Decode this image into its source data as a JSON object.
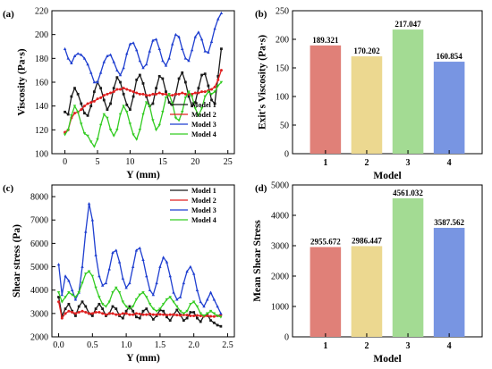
{
  "colors": {
    "model1": "#1a1a1a",
    "model2": "#e02020",
    "model3": "#1f3fd0",
    "model4": "#33cc22",
    "bar1": "#e08078",
    "bar2": "#ecd890",
    "bar3": "#a3db93",
    "bar4": "#7895e2"
  },
  "chart_data": [
    {
      "id": "a",
      "panel_label": "(a)",
      "type": "line",
      "xlabel": "Y (mm)",
      "ylabel": "Viscosity (Pa·s)",
      "xlim": [
        -2,
        26
      ],
      "ylim": [
        100,
        220
      ],
      "xticks": [
        0,
        5,
        10,
        15,
        20,
        25
      ],
      "yticks": [
        100,
        120,
        140,
        160,
        180,
        200,
        220
      ],
      "legend_position": "bottom-right",
      "series": [
        {
          "name": "Model 1",
          "color_key": "model1",
          "marker": "square",
          "x": [
            0,
            0.5,
            1,
            1.5,
            2,
            2.5,
            3,
            3.5,
            4,
            4.5,
            5,
            5.5,
            6,
            6.5,
            7,
            7.5,
            8,
            8.5,
            9,
            9.5,
            10,
            10.5,
            11,
            11.5,
            12,
            12.5,
            13,
            13.5,
            14,
            14.5,
            15,
            15.5,
            16,
            16.5,
            17,
            17.5,
            18,
            18.5,
            19,
            19.5,
            20,
            20.5,
            21,
            21.5,
            22,
            22.5,
            23,
            23.5,
            24
          ],
          "y": [
            135,
            133,
            148,
            155,
            150,
            142,
            134,
            132,
            140,
            152,
            160,
            155,
            145,
            137,
            142,
            155,
            164,
            160,
            150,
            141,
            137,
            148,
            162,
            166,
            159,
            148,
            140,
            142,
            155,
            165,
            163,
            152,
            143,
            141,
            150,
            163,
            168,
            160,
            148,
            140,
            143,
            155,
            166,
            167,
            157,
            145,
            142,
            165,
            188
          ]
        },
        {
          "name": "Model 2",
          "color_key": "model2",
          "marker": "circle",
          "x": [
            0,
            0.5,
            1,
            1.5,
            2,
            2.5,
            3,
            3.5,
            4,
            4.5,
            5,
            5.5,
            6,
            6.5,
            7,
            7.5,
            8,
            8.5,
            9,
            9.5,
            10,
            10.5,
            11,
            11.5,
            12,
            12.5,
            13,
            13.5,
            14,
            14.5,
            15,
            15.5,
            16,
            16.5,
            17,
            17.5,
            18,
            18.5,
            19,
            19.5,
            20,
            20.5,
            21,
            21.5,
            22,
            22.5,
            23,
            23.5,
            24
          ],
          "y": [
            118,
            120,
            130,
            134,
            135,
            137,
            140,
            142,
            143,
            144,
            146,
            147,
            149,
            150,
            151,
            152,
            154,
            154,
            155,
            154,
            153,
            152,
            151,
            150,
            150,
            149,
            149,
            150,
            150,
            151,
            150,
            150,
            149,
            149,
            150,
            150,
            151,
            150,
            150,
            150,
            151,
            151,
            152,
            152,
            153,
            154,
            156,
            162,
            170
          ]
        },
        {
          "name": "Model 3",
          "color_key": "model3",
          "marker": "triangle",
          "x": [
            0,
            0.5,
            1,
            1.5,
            2,
            2.5,
            3,
            3.5,
            4,
            4.5,
            5,
            5.5,
            6,
            6.5,
            7,
            7.5,
            8,
            8.5,
            9,
            9.5,
            10,
            10.5,
            11,
            11.5,
            12,
            12.5,
            13,
            13.5,
            14,
            14.5,
            15,
            15.5,
            16,
            16.5,
            17,
            17.5,
            18,
            18.5,
            19,
            19.5,
            20,
            20.5,
            21,
            21.5,
            22,
            22.5,
            23,
            23.5,
            24
          ],
          "y": [
            188,
            180,
            176,
            182,
            184,
            183,
            180,
            175,
            168,
            160,
            160,
            168,
            177,
            182,
            183,
            177,
            170,
            166,
            172,
            184,
            192,
            193,
            187,
            178,
            172,
            175,
            186,
            195,
            196,
            188,
            178,
            174,
            180,
            192,
            200,
            198,
            188,
            180,
            178,
            187,
            198,
            202,
            196,
            186,
            185,
            194,
            205,
            213,
            218
          ]
        },
        {
          "name": "Model 4",
          "color_key": "model4",
          "marker": "triangle-down",
          "x": [
            0,
            0.5,
            1,
            1.5,
            2,
            2.5,
            3,
            3.5,
            4,
            4.5,
            5,
            5.5,
            6,
            6.5,
            7,
            7.5,
            8,
            8.5,
            9,
            9.5,
            10,
            10.5,
            11,
            11.5,
            12,
            12.5,
            13,
            13.5,
            14,
            14.5,
            15,
            15.5,
            16,
            16.5,
            17,
            17.5,
            18,
            18.5,
            19,
            19.5,
            20,
            20.5,
            21,
            21.5,
            22,
            22.5,
            23,
            23.5,
            24
          ],
          "y": [
            116,
            120,
            132,
            140,
            135,
            125,
            117,
            115,
            110,
            106,
            112,
            124,
            133,
            130,
            120,
            115,
            120,
            133,
            140,
            135,
            125,
            116,
            112,
            120,
            133,
            143,
            140,
            128,
            120,
            124,
            135,
            147,
            150,
            142,
            130,
            128,
            135,
            147,
            152,
            148,
            138,
            132,
            138,
            148,
            152,
            150,
            152,
            157,
            160
          ]
        }
      ]
    },
    {
      "id": "b",
      "panel_label": "(b)",
      "type": "bar",
      "xlabel": "Model",
      "ylabel": "Exit's Viscosity (Pa·s)",
      "ylim": [
        0,
        250
      ],
      "yticks": [
        0,
        50,
        100,
        150,
        200,
        250
      ],
      "categories": [
        "1",
        "2",
        "3",
        "4"
      ],
      "values": [
        189.321,
        170.202,
        217.047,
        160.854
      ],
      "labels": [
        "189.321",
        "170.202",
        "217.047",
        "160.854"
      ],
      "bar_color_keys": [
        "bar1",
        "bar2",
        "bar3",
        "bar4"
      ]
    },
    {
      "id": "c",
      "panel_label": "(c)",
      "type": "line",
      "xlabel": "Y (mm)",
      "ylabel": "Shear stress (Pa)",
      "xlim": [
        -0.1,
        2.6
      ],
      "ylim": [
        2000,
        8500
      ],
      "xticks": [
        0.0,
        0.5,
        1.0,
        1.5,
        2.0,
        2.5
      ],
      "xtick_labels": [
        "0.0",
        "0.5",
        "1.0",
        "1.5",
        "2.0",
        "2.5"
      ],
      "yticks": [
        2000,
        3000,
        4000,
        5000,
        6000,
        7000,
        8000
      ],
      "legend_position": "top-right",
      "series": [
        {
          "name": "Model 1",
          "color_key": "model1",
          "marker": "square",
          "x": [
            0.0,
            0.05,
            0.1,
            0.15,
            0.2,
            0.25,
            0.3,
            0.35,
            0.4,
            0.45,
            0.5,
            0.55,
            0.6,
            0.65,
            0.7,
            0.75,
            0.8,
            0.85,
            0.9,
            0.95,
            1.0,
            1.05,
            1.1,
            1.15,
            1.2,
            1.25,
            1.3,
            1.35,
            1.4,
            1.45,
            1.5,
            1.55,
            1.6,
            1.65,
            1.7,
            1.75,
            1.8,
            1.85,
            1.9,
            1.95,
            2.0,
            2.05,
            2.1,
            2.15,
            2.2,
            2.25,
            2.3,
            2.35,
            2.4
          ],
          "y": [
            3700,
            2900,
            3200,
            3400,
            3100,
            2900,
            3300,
            3500,
            3300,
            3000,
            2900,
            3200,
            3400,
            3200,
            2900,
            3000,
            3300,
            3200,
            2900,
            2800,
            3100,
            3300,
            3100,
            2850,
            2800,
            3100,
            3200,
            2950,
            2750,
            2900,
            3150,
            3100,
            2850,
            2700,
            2950,
            3150,
            2950,
            2700,
            2800,
            3050,
            3050,
            2800,
            2650,
            2900,
            2950,
            2700,
            2600,
            2500,
            2450
          ]
        },
        {
          "name": "Model 2",
          "color_key": "model2",
          "marker": "circle",
          "x": [
            0.0,
            0.05,
            0.1,
            0.15,
            0.2,
            0.25,
            0.3,
            0.35,
            0.4,
            0.45,
            0.5,
            0.55,
            0.6,
            0.65,
            0.7,
            0.75,
            0.8,
            0.85,
            0.9,
            0.95,
            1.0,
            1.05,
            1.1,
            1.15,
            1.2,
            1.25,
            1.3,
            1.35,
            1.4,
            1.45,
            1.5,
            1.55,
            1.6,
            1.65,
            1.7,
            1.75,
            1.8,
            1.85,
            1.9,
            1.95,
            2.0,
            2.05,
            2.1,
            2.15,
            2.2,
            2.25,
            2.3,
            2.35,
            2.4
          ],
          "y": [
            3500,
            2800,
            3000,
            3100,
            3050,
            3000,
            3050,
            3100,
            3050,
            3000,
            3000,
            3050,
            3050,
            3000,
            2950,
            3000,
            3000,
            2950,
            2950,
            3000,
            3000,
            2950,
            2950,
            3000,
            2980,
            2950,
            2950,
            2980,
            2950,
            2950,
            2960,
            2950,
            2930,
            2950,
            2950,
            2930,
            2920,
            2940,
            2930,
            2900,
            2900,
            2920,
            2900,
            2880,
            2900,
            2880,
            2870,
            2900,
            2950
          ]
        },
        {
          "name": "Model 3",
          "color_key": "model3",
          "marker": "triangle",
          "x": [
            0.0,
            0.05,
            0.1,
            0.15,
            0.2,
            0.25,
            0.3,
            0.35,
            0.4,
            0.45,
            0.5,
            0.55,
            0.6,
            0.65,
            0.7,
            0.75,
            0.8,
            0.85,
            0.9,
            0.95,
            1.0,
            1.05,
            1.1,
            1.15,
            1.2,
            1.25,
            1.3,
            1.35,
            1.4,
            1.45,
            1.5,
            1.55,
            1.6,
            1.65,
            1.7,
            1.75,
            1.8,
            1.85,
            1.9,
            1.95,
            2.0,
            2.05,
            2.1,
            2.15,
            2.2,
            2.25,
            2.3,
            2.35,
            2.4
          ],
          "y": [
            5100,
            3800,
            4600,
            4400,
            4000,
            3600,
            3900,
            5000,
            6500,
            7700,
            7000,
            5500,
            4600,
            4200,
            4300,
            4900,
            5600,
            5700,
            5200,
            4500,
            4100,
            4300,
            5000,
            5700,
            5800,
            5300,
            4600,
            4000,
            3800,
            4300,
            5000,
            5400,
            5200,
            4600,
            3900,
            3600,
            3700,
            4300,
            4800,
            5000,
            4700,
            4000,
            3500,
            3300,
            3600,
            3900,
            3600,
            3300,
            3000
          ]
        },
        {
          "name": "Model 4",
          "color_key": "model4",
          "marker": "triangle-down",
          "x": [
            0.0,
            0.05,
            0.1,
            0.15,
            0.2,
            0.25,
            0.3,
            0.35,
            0.4,
            0.45,
            0.5,
            0.55,
            0.6,
            0.65,
            0.7,
            0.75,
            0.8,
            0.85,
            0.9,
            0.95,
            1.0,
            1.05,
            1.1,
            1.15,
            1.2,
            1.25,
            1.3,
            1.35,
            1.4,
            1.45,
            1.5,
            1.55,
            1.6,
            1.65,
            1.7,
            1.75,
            1.8,
            1.85,
            1.9,
            1.95,
            2.0,
            2.05,
            2.1,
            2.15,
            2.2,
            2.25,
            2.3,
            2.35,
            2.4
          ],
          "y": [
            3900,
            3500,
            3700,
            3900,
            3800,
            3700,
            3900,
            4300,
            4700,
            4800,
            4600,
            4100,
            3700,
            3400,
            3300,
            3500,
            3900,
            4100,
            3900,
            3500,
            3300,
            3200,
            3300,
            3600,
            3800,
            3900,
            3700,
            3400,
            3200,
            3100,
            3200,
            3400,
            3600,
            3700,
            3500,
            3300,
            3100,
            3000,
            3100,
            3400,
            3500,
            3300,
            3000,
            2900,
            3000,
            3100,
            3000,
            2900,
            2850
          ]
        }
      ]
    },
    {
      "id": "d",
      "panel_label": "(d)",
      "type": "bar",
      "xlabel": "Model",
      "ylabel": "Mean Shear Stress",
      "ylim": [
        0,
        5000
      ],
      "yticks": [
        0,
        1000,
        2000,
        3000,
        4000,
        5000
      ],
      "categories": [
        "1",
        "2",
        "3",
        "4"
      ],
      "values": [
        2955.672,
        2986.447,
        4561.032,
        3587.562
      ],
      "labels": [
        "2955.672",
        "2986.447",
        "4561.032",
        "3587.562"
      ],
      "bar_color_keys": [
        "bar1",
        "bar2",
        "bar3",
        "bar4"
      ]
    }
  ]
}
